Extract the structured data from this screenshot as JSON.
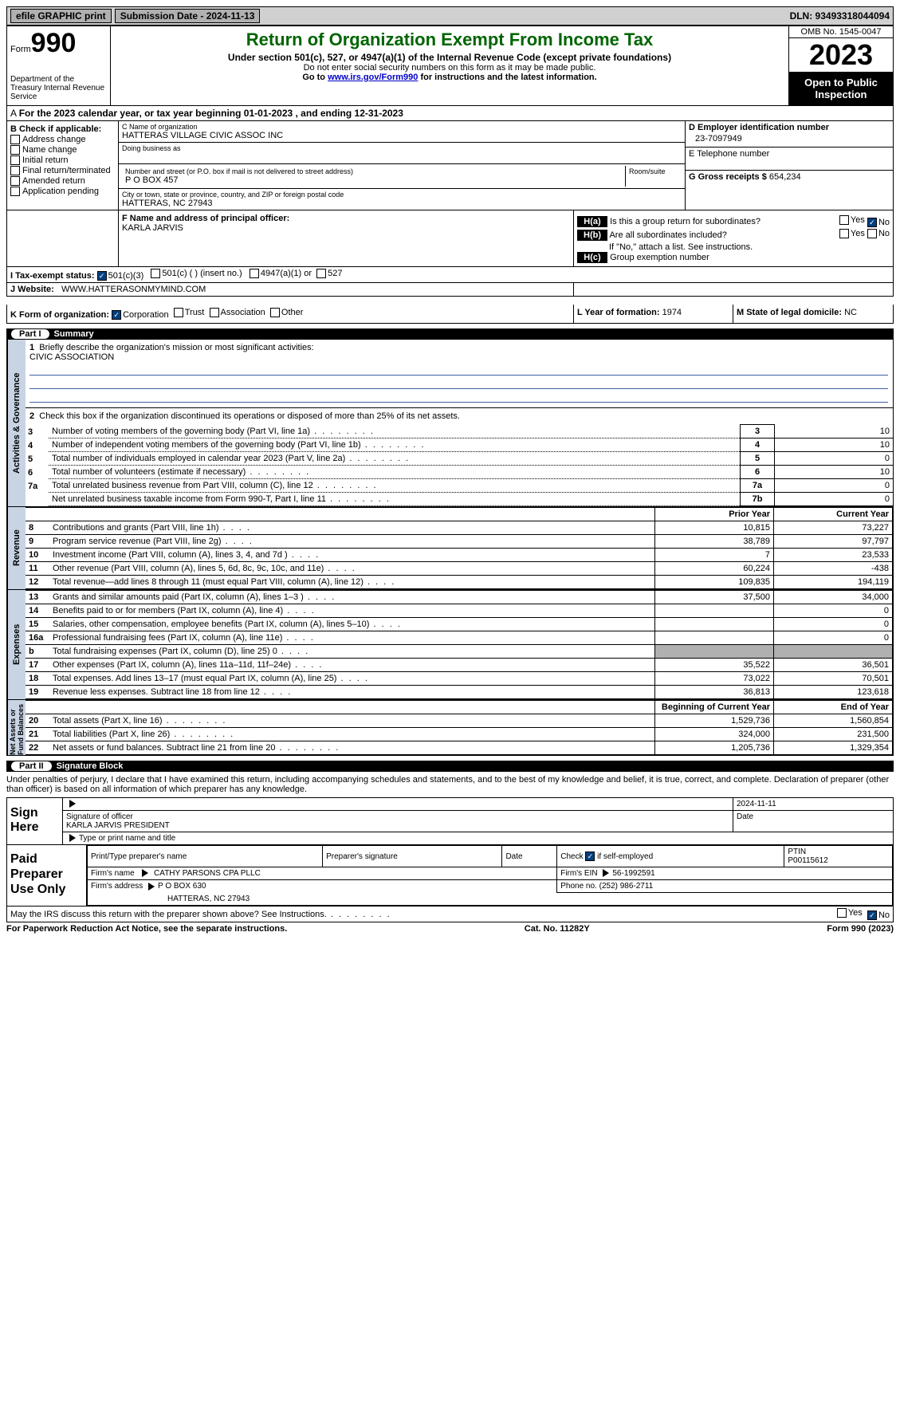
{
  "top_bar": {
    "efile": "efile GRAPHIC print",
    "submission_label": "Submission Date - 2024-11-13",
    "dln_label": "DLN: 93493318044094"
  },
  "header": {
    "form_label": "Form",
    "form_number": "990",
    "dept": "Department of the Treasury Internal Revenue Service",
    "title": "Return of Organization Exempt From Income Tax",
    "subtitle": "Under section 501(c), 527, or 4947(a)(1) of the Internal Revenue Code (except private foundations)",
    "ssn_note": "Do not enter social security numbers on this form as it may be made public.",
    "goto_prefix": "Go to ",
    "goto_link": "www.irs.gov/Form990",
    "goto_suffix": " for instructions and the latest information.",
    "omb": "OMB No. 1545-0047",
    "year": "2023",
    "open_public": "Open to Public Inspection"
  },
  "line_A": "For the 2023 calendar year, or tax year beginning 01-01-2023   , and ending 12-31-2023",
  "box_B": {
    "label": "B Check if applicable:",
    "items": [
      "Address change",
      "Name change",
      "Initial return",
      "Final return/terminated",
      "Amended return",
      "Application pending"
    ]
  },
  "box_C": {
    "name_label": "C Name of organization",
    "name": "HATTERAS VILLAGE CIVIC ASSOC INC",
    "dba_label": "Doing business as",
    "addr_label": "Number and street (or P.O. box if mail is not delivered to street address)",
    "addr": "P O BOX 457",
    "room_label": "Room/suite",
    "city_label": "City or town, state or province, country, and ZIP or foreign postal code",
    "city": "HATTERAS, NC  27943"
  },
  "box_D": {
    "label": "D Employer identification number",
    "value": "23-7097949"
  },
  "box_E": {
    "label": "E Telephone number",
    "value": ""
  },
  "box_G": {
    "label": "G Gross receipts $",
    "value": "654,234"
  },
  "box_F": {
    "label": "F  Name and address of principal officer:",
    "value": "KARLA JARVIS"
  },
  "box_H": {
    "a": "Is this a group return for subordinates?",
    "b": "Are all subordinates included?",
    "note": "If \"No,\" attach a list. See instructions.",
    "c": "Group exemption number"
  },
  "tax_exempt": {
    "label": "I   Tax-exempt status:",
    "o1": "501(c)(3)",
    "o2": "501(c) (  ) (insert no.)",
    "o3": "4947(a)(1) or",
    "o4": "527"
  },
  "website": {
    "label": "J   Website:",
    "value": "WWW.HATTERASONMYMIND.COM"
  },
  "box_K": {
    "label": "K Form of organization:",
    "o1": "Corporation",
    "o2": "Trust",
    "o3": "Association",
    "o4": "Other"
  },
  "box_L": {
    "label": "L Year of formation:",
    "value": "1974"
  },
  "box_M": {
    "label": "M State of legal domicile:",
    "value": "NC"
  },
  "part1": {
    "title": "Summary"
  },
  "summary": {
    "l1": "Briefly describe the organization's mission or most significant activities:",
    "mission": "CIVIC ASSOCIATION",
    "l2": "Check this box      if the organization discontinued its operations or disposed of more than 25% of its net assets.",
    "gov": {
      "side": "Activities & Governance",
      "rows": [
        {
          "n": "3",
          "d": "Number of voting members of the governing body (Part VI, line 1a)",
          "b": "3",
          "v": "10"
        },
        {
          "n": "4",
          "d": "Number of independent voting members of the governing body (Part VI, line 1b)",
          "b": "4",
          "v": "10"
        },
        {
          "n": "5",
          "d": "Total number of individuals employed in calendar year 2023 (Part V, line 2a)",
          "b": "5",
          "v": "0"
        },
        {
          "n": "6",
          "d": "Total number of volunteers (estimate if necessary)",
          "b": "6",
          "v": "10"
        },
        {
          "n": "7a",
          "d": "Total unrelated business revenue from Part VIII, column (C), line 12",
          "b": "7a",
          "v": "0"
        },
        {
          "n": "",
          "d": "Net unrelated business taxable income from Form 990-T, Part I, line 11",
          "b": "7b",
          "v": "0"
        }
      ]
    },
    "rev": {
      "side": "Revenue",
      "h1": "Prior Year",
      "h2": "Current Year",
      "rows": [
        {
          "n": "8",
          "d": "Contributions and grants (Part VIII, line 1h)",
          "p": "10,815",
          "c": "73,227"
        },
        {
          "n": "9",
          "d": "Program service revenue (Part VIII, line 2g)",
          "p": "38,789",
          "c": "97,797"
        },
        {
          "n": "10",
          "d": "Investment income (Part VIII, column (A), lines 3, 4, and 7d )",
          "p": "7",
          "c": "23,533"
        },
        {
          "n": "11",
          "d": "Other revenue (Part VIII, column (A), lines 5, 6d, 8c, 9c, 10c, and 11e)",
          "p": "60,224",
          "c": "-438"
        },
        {
          "n": "12",
          "d": "Total revenue—add lines 8 through 11 (must equal Part VIII, column (A), line 12)",
          "p": "109,835",
          "c": "194,119"
        }
      ]
    },
    "exp": {
      "side": "Expenses",
      "rows": [
        {
          "n": "13",
          "d": "Grants and similar amounts paid (Part IX, column (A), lines 1–3 )",
          "p": "37,500",
          "c": "34,000"
        },
        {
          "n": "14",
          "d": "Benefits paid to or for members (Part IX, column (A), line 4)",
          "p": "",
          "c": "0"
        },
        {
          "n": "15",
          "d": "Salaries, other compensation, employee benefits (Part IX, column (A), lines 5–10)",
          "p": "",
          "c": "0"
        },
        {
          "n": "16a",
          "d": "Professional fundraising fees (Part IX, column (A), line 11e)",
          "p": "",
          "c": "0"
        },
        {
          "n": "b",
          "d": "Total fundraising expenses (Part IX, column (D), line 25) 0",
          "p": "gray",
          "c": "gray"
        },
        {
          "n": "17",
          "d": "Other expenses (Part IX, column (A), lines 11a–11d, 11f–24e)",
          "p": "35,522",
          "c": "36,501"
        },
        {
          "n": "18",
          "d": "Total expenses. Add lines 13–17 (must equal Part IX, column (A), line 25)",
          "p": "73,022",
          "c": "70,501"
        },
        {
          "n": "19",
          "d": "Revenue less expenses. Subtract line 18 from line 12",
          "p": "36,813",
          "c": "123,618"
        }
      ]
    },
    "net": {
      "side": "Net Assets or Fund Balances",
      "h1": "Beginning of Current Year",
      "h2": "End of Year",
      "rows": [
        {
          "n": "20",
          "d": "Total assets (Part X, line 16)",
          "p": "1,529,736",
          "c": "1,560,854"
        },
        {
          "n": "21",
          "d": "Total liabilities (Part X, line 26)",
          "p": "324,000",
          "c": "231,500"
        },
        {
          "n": "22",
          "d": "Net assets or fund balances. Subtract line 21 from line 20",
          "p": "1,205,736",
          "c": "1,329,354"
        }
      ]
    }
  },
  "part2": {
    "title": "Signature Block"
  },
  "sig": {
    "decl": "Under penalties of perjury, I declare that I have examined this return, including accompanying schedules and statements, and to the best of my knowledge and belief, it is true, correct, and complete. Declaration of preparer (other than officer) is based on all information of which preparer has any knowledge.",
    "sign_here": "Sign Here",
    "sig_of": "Signature of officer",
    "date": "Date",
    "date_val": "2024-11-11",
    "officer": "KARLA JARVIS PRESIDENT",
    "type_label": "Type or print name and title"
  },
  "prep": {
    "label": "Paid Preparer Use Only",
    "h1": "Print/Type preparer's name",
    "h2": "Preparer's signature",
    "h3": "Date",
    "h4": "Check       if self-employed",
    "h5": "PTIN",
    "ptin": "P00115612",
    "firm_name_l": "Firm's name",
    "firm_name": "CATHY PARSONS CPA PLLC",
    "firm_ein_l": "Firm's EIN",
    "firm_ein": "56-1992591",
    "firm_addr_l": "Firm's address",
    "firm_addr1": "P O BOX 630",
    "firm_addr2": "HATTERAS, NC  27943",
    "phone_l": "Phone no.",
    "phone": "(252) 986-2711"
  },
  "disclose": "May the IRS discuss this return with the preparer shown above? See Instructions.",
  "footer": {
    "pra": "For Paperwork Reduction Act Notice, see the separate instructions.",
    "cat": "Cat. No. 11282Y",
    "form": "Form 990 (2023)"
  }
}
